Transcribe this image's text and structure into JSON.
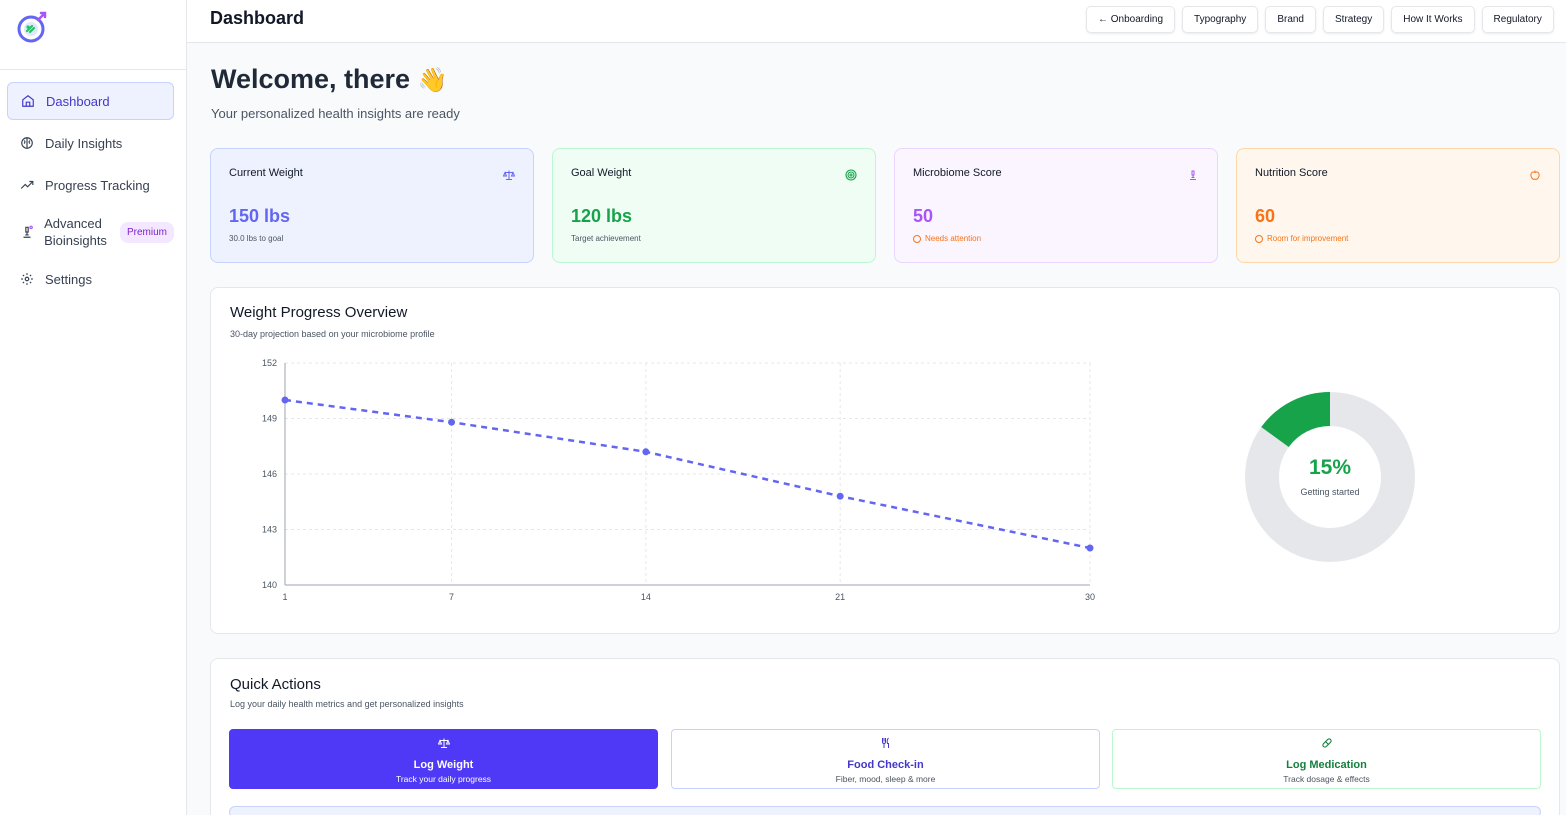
{
  "header": {
    "title": "Dashboard"
  },
  "toplinks": [
    "← Onboarding",
    "Typography",
    "Brand",
    "Strategy",
    "How It Works",
    "Regulatory"
  ],
  "sidebar": {
    "items": [
      {
        "label": "Dashboard",
        "icon": "home-icon"
      },
      {
        "label": "Daily Insights",
        "icon": "brain-icon"
      },
      {
        "label": "Progress Tracking",
        "icon": "trending-up-icon"
      },
      {
        "label": "Advanced Bioinsights",
        "icon": "microscope-icon",
        "badge": "Premium"
      },
      {
        "label": "Settings",
        "icon": "gear-icon"
      }
    ]
  },
  "welcome": {
    "title": "Welcome, there",
    "emoji": "👋",
    "subtitle": "Your personalized health insights are ready"
  },
  "stats": [
    {
      "label": "Current Weight",
      "value": "150 lbs",
      "note": "30.0 lbs to goal",
      "color": "#6366f1",
      "icon": "scale-icon"
    },
    {
      "label": "Goal Weight",
      "value": "120 lbs",
      "note": "Target achievement",
      "color": "#16a34a",
      "icon": "target-icon"
    },
    {
      "label": "Microbiome Score",
      "value": "50",
      "note": "Needs attention",
      "color": "#a855f7",
      "icon": "microscope-icon"
    },
    {
      "label": "Nutrition Score",
      "value": "60",
      "note": "Room for improvement",
      "color": "#f97316",
      "icon": "apple-icon"
    }
  ],
  "weight_card": {
    "title": "Weight Progress Overview",
    "subtitle": "30-day projection based on your microbiome profile"
  },
  "chart_data": {
    "type": "line",
    "x": [
      1,
      7,
      14,
      21,
      30
    ],
    "values": [
      150,
      148.8,
      147.2,
      144.8,
      142
    ],
    "xticks": [
      "1",
      "7",
      "14",
      "21",
      "30"
    ],
    "yticks": [
      "140",
      "143",
      "146",
      "149",
      "152"
    ],
    "ylim": [
      140,
      152
    ],
    "xlim": [
      1,
      30
    ],
    "line_style": "dashed",
    "color": "#6366f1",
    "grid": true
  },
  "progress": {
    "percent": 15,
    "label": "15%",
    "caption": "Getting started",
    "color": "#16a34a"
  },
  "quick_actions": {
    "title": "Quick Actions",
    "subtitle": "Log your daily health metrics and get personalized insights",
    "items": [
      {
        "title": "Log Weight",
        "sub": "Track your daily progress",
        "icon": "scale-icon"
      },
      {
        "title": "Food Check-in",
        "sub": "Fiber, mood, sleep & more",
        "icon": "utensils-icon"
      },
      {
        "title": "Log Medication",
        "sub": "Track dosage & effects",
        "icon": "pill-icon"
      }
    ]
  }
}
